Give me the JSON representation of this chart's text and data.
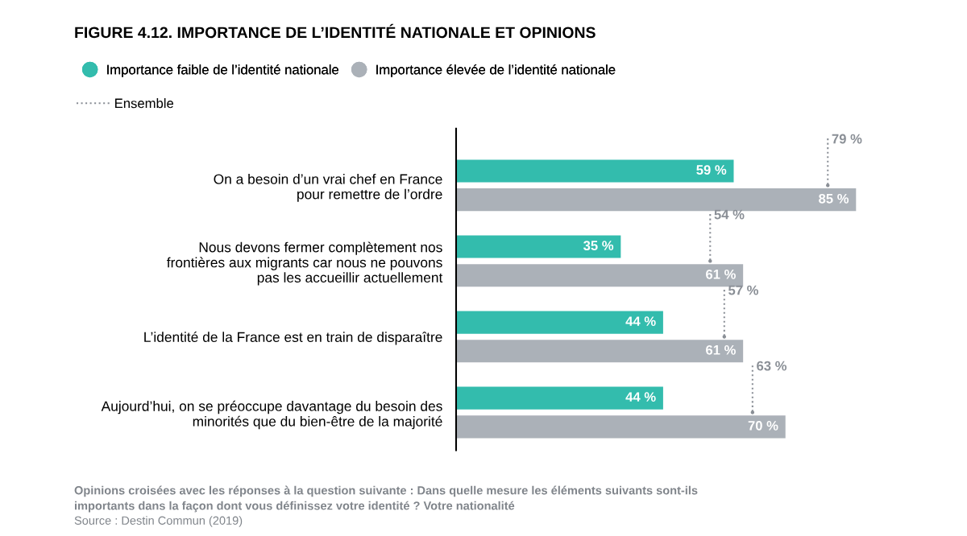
{
  "chart_data": {
    "type": "bar",
    "orientation": "horizontal",
    "title": "FIGURE 4.12. IMPORTANCE DE L’IDENTITÉ NATIONALE ET OPINIONS",
    "categories": [
      "On a besoin d’un vrai chef en France\npour remettre de l’ordre",
      "Nous devons fermer complètement nos\nfrontières aux migrants car nous ne pouvons\npas les accueillir actuellement",
      "L’identité de la France est en train de disparaître",
      "Aujourd’hui, on se préoccupe davantage du besoin des\nminorités que du bien-être de la majorité"
    ],
    "series": [
      {
        "name": "Importance faible de l’identité nationale",
        "color": "#33bcad",
        "values": [
          59,
          35,
          44,
          44
        ],
        "value_labels": [
          "59 %",
          "35 %",
          "44 %",
          "44 %"
        ]
      },
      {
        "name": "Importance élevée de l’identité nationale",
        "color": "#abb1b8",
        "values": [
          85,
          61,
          61,
          70
        ],
        "value_labels": [
          "85 %",
          "61 %",
          "61 %",
          "70 %"
        ]
      },
      {
        "name": "Ensemble",
        "type": "scatter",
        "color": "#8a8f96",
        "line_style": "dotted",
        "values": [
          79,
          54,
          57,
          63
        ],
        "value_labels": [
          "79 %",
          "54 %",
          "57 %",
          "63 %"
        ]
      }
    ],
    "tick_labels": "y",
    "legend": "top left",
    "annotations": [
      "Opinions croisées avec les réponses à la question suivante : Dans quelle mesure les éléments suivants sont-ils\nimportants dans la façon dont vous définissez votre identité ? Votre nationalité",
      "Source : Destin Commun (2019)"
    ]
  }
}
